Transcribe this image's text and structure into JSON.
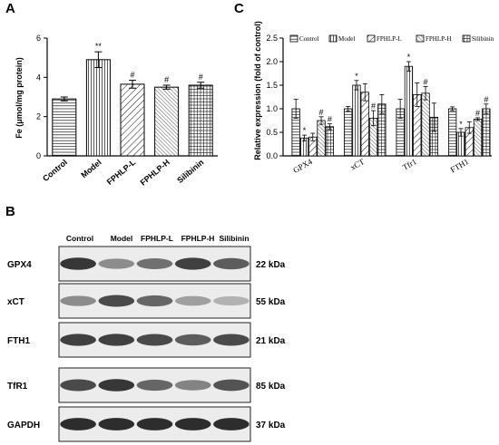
{
  "panels": {
    "a": {
      "letter": "A",
      "chart_data": {
        "type": "bar",
        "categories": [
          "Control",
          "Model",
          "FPHLP-L",
          "FPHLP-H",
          "Silibinin"
        ],
        "values": [
          2.9,
          4.9,
          3.65,
          3.5,
          3.6
        ],
        "errors": [
          0.1,
          0.4,
          0.2,
          0.1,
          0.15
        ],
        "significance": [
          "",
          "**",
          "#",
          "#",
          "#"
        ],
        "patterns": [
          "hlines",
          "vlines",
          "diag",
          "diag-dense",
          "grid"
        ],
        "xlabel": "",
        "ylabel": "Fe (μmol/mg protein)",
        "ylim": [
          0,
          6
        ],
        "yticks": [
          0,
          2,
          4,
          6
        ],
        "grid": false,
        "legend": "none"
      }
    },
    "c": {
      "letter": "C",
      "chart_data": {
        "type": "bar",
        "categories": [
          "GPX4",
          "xCT",
          "Tfr1",
          "FTH1"
        ],
        "series": [
          {
            "name": "Control",
            "pattern": "hlines",
            "values": [
              1.0,
              1.0,
              1.0,
              1.0
            ],
            "errors": [
              0.2,
              0.05,
              0.2,
              0.04
            ],
            "significance": [
              "",
              "",
              "",
              ""
            ]
          },
          {
            "name": "Model",
            "pattern": "vlines",
            "values": [
              0.38,
              1.5,
              1.9,
              0.5
            ],
            "errors": [
              0.06,
              0.1,
              0.1,
              0.08
            ],
            "significance": [
              "*",
              "*",
              "*",
              "*"
            ]
          },
          {
            "name": "FPHLP-L",
            "pattern": "diag",
            "values": [
              0.4,
              1.35,
              1.3,
              0.6
            ],
            "errors": [
              0.08,
              0.18,
              0.25,
              0.12
            ],
            "significance": [
              "",
              "",
              "",
              ""
            ]
          },
          {
            "name": "FPHLP-H",
            "pattern": "diag-dense",
            "values": [
              0.75,
              0.8,
              1.33,
              0.78
            ],
            "errors": [
              0.08,
              0.16,
              0.14,
              0.03
            ],
            "significance": [
              "#",
              "#",
              "#",
              "#"
            ]
          },
          {
            "name": "Silibinin",
            "pattern": "grid",
            "values": [
              0.62,
              1.1,
              0.82,
              1.0
            ],
            "errors": [
              0.06,
              0.2,
              0.3,
              0.1
            ],
            "significance": [
              "#",
              "",
              "",
              "#"
            ]
          }
        ],
        "xlabel": "",
        "ylabel": "Relative expression (fold of control)",
        "ylim": [
          0,
          2.5
        ],
        "yticks": [
          0.0,
          0.5,
          1.0,
          1.5,
          2.0,
          2.5
        ],
        "yticklabels": [
          "0.0",
          "0.5",
          "1.0",
          "1.5",
          "2.0",
          "2.5"
        ],
        "grid": false,
        "legend": "top"
      }
    },
    "b": {
      "letter": "B",
      "lanes": [
        "Control",
        "Model",
        "FPHLP-L",
        "FPHLP-H",
        "Silibinin"
      ],
      "blots": [
        {
          "protein": "GPX4",
          "size": "22 kDa",
          "intensity": [
            0.9,
            0.45,
            0.6,
            0.85,
            0.7
          ]
        },
        {
          "protein": "xCT",
          "size": "55 kDa",
          "intensity": [
            0.45,
            0.8,
            0.65,
            0.35,
            0.25
          ]
        },
        {
          "protein": "FTH1",
          "size": "21 kDa",
          "intensity": [
            0.85,
            0.85,
            0.8,
            0.7,
            0.8
          ]
        },
        {
          "protein": "TfR1",
          "size": "85 kDa",
          "intensity": [
            0.8,
            0.9,
            0.65,
            0.5,
            0.75
          ]
        },
        {
          "protein": "GAPDH",
          "size": "37 kDa",
          "intensity": [
            0.95,
            0.95,
            0.95,
            0.95,
            0.95
          ]
        }
      ]
    }
  }
}
